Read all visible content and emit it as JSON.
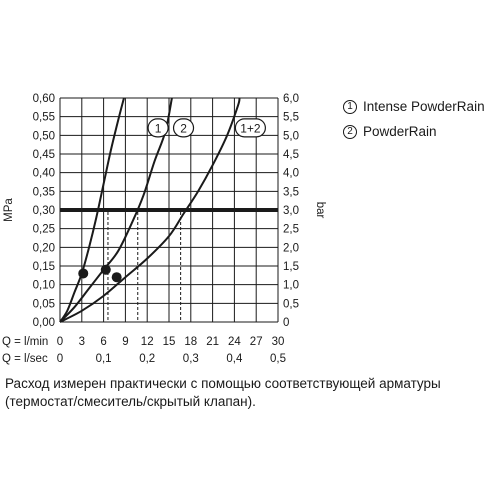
{
  "chart_data": {
    "type": "line",
    "ylabel": "MPa",
    "ylabel_right": "bar",
    "y_ticks": [
      "0,60",
      "0,55",
      "0,50",
      "0,45",
      "0,40",
      "0,35",
      "0,30",
      "0,25",
      "0,20",
      "0,15",
      "0,10",
      "0,05",
      "0,00"
    ],
    "y_ticks_right": [
      "6,0",
      "5,5",
      "5,0",
      "4,5",
      "4,0",
      "3,5",
      "3,0",
      "2,5",
      "2,0",
      "1,5",
      "1,0",
      "0,5",
      "0"
    ],
    "ylim": [
      0,
      0.6
    ],
    "x_axis_lmin": {
      "label": "Q = l/min",
      "ticks": [
        "0",
        "3",
        "6",
        "9",
        "12",
        "15",
        "18",
        "21",
        "24",
        "27",
        "30"
      ]
    },
    "x_axis_lsec": {
      "label": "Q = l/sec",
      "ticks": [
        "0",
        "0,1",
        "0,2",
        "0,3",
        "0,4",
        "0,5"
      ]
    },
    "xlim": [
      0,
      30
    ],
    "reference_pressure": 0.3,
    "series": [
      {
        "name": "1",
        "points": [
          [
            0,
            0
          ],
          [
            1,
            0.03
          ],
          [
            2,
            0.08
          ],
          [
            3,
            0.13
          ],
          [
            4,
            0.2
          ],
          [
            5,
            0.28
          ],
          [
            6,
            0.37
          ],
          [
            7,
            0.46
          ],
          [
            8,
            0.54
          ],
          [
            8.8,
            0.6
          ]
        ],
        "operating_point": [
          3.2,
          0.13
        ],
        "flow_at_reference": 6.6
      },
      {
        "name": "2",
        "points": [
          [
            0,
            0
          ],
          [
            2,
            0.04
          ],
          [
            4,
            0.09
          ],
          [
            6,
            0.14
          ],
          [
            8,
            0.19
          ],
          [
            10,
            0.27
          ],
          [
            11.5,
            0.34
          ],
          [
            13,
            0.43
          ],
          [
            14.5,
            0.51
          ],
          [
            15.4,
            0.6
          ]
        ],
        "operating_point": [
          6.3,
          0.14
        ],
        "flow_at_reference": 10.7
      },
      {
        "name": "1+2",
        "points": [
          [
            0,
            0
          ],
          [
            3,
            0.03
          ],
          [
            6,
            0.07
          ],
          [
            9,
            0.12
          ],
          [
            12,
            0.17
          ],
          [
            15,
            0.23
          ],
          [
            17,
            0.29
          ],
          [
            19,
            0.35
          ],
          [
            21,
            0.42
          ],
          [
            23,
            0.5
          ],
          [
            24.5,
            0.58
          ],
          [
            24.7,
            0.6
          ]
        ],
        "operating_point": [
          7.8,
          0.12
        ],
        "flow_at_reference": 16.6
      }
    ],
    "grid": true
  },
  "legend": {
    "items": [
      {
        "marker": "1",
        "label": "Intense PowderRain"
      },
      {
        "marker": "2",
        "label": "PowderRain"
      }
    ]
  },
  "footnote": "Расход измерен практически с помощью соответствующей арматуры (термостат/смеситель/скрытый клапан)."
}
